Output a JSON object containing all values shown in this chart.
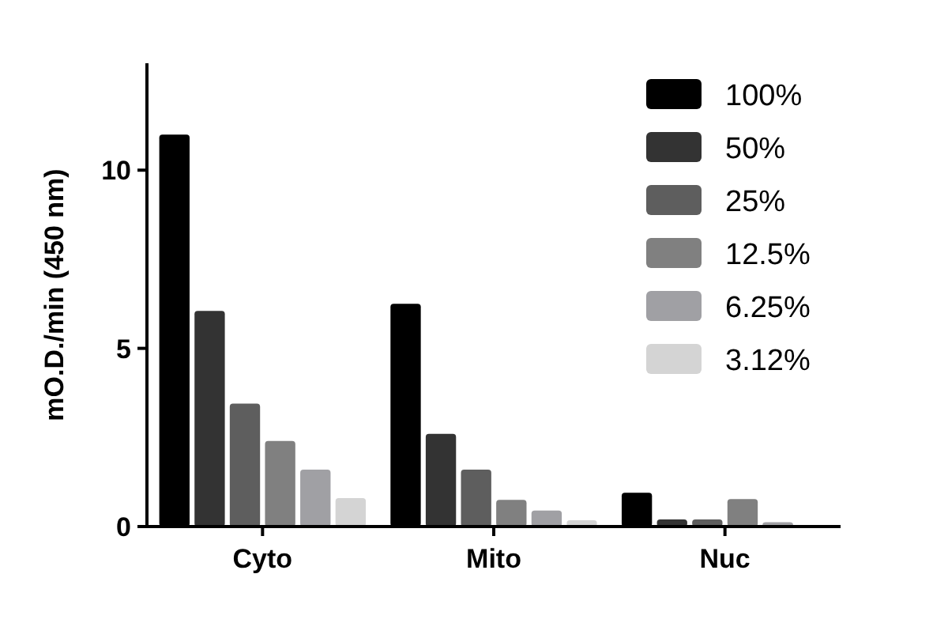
{
  "chart_data": {
    "type": "bar",
    "ylabel": "mO.D./min (450 nm)",
    "categories": [
      "Cyto",
      "Mito",
      "Nuc"
    ],
    "series": [
      {
        "name": "100%",
        "color": "#000000",
        "values": [
          11.0,
          6.25,
          0.95
        ]
      },
      {
        "name": "50%",
        "color": "#333333",
        "values": [
          6.05,
          2.6,
          0.2
        ]
      },
      {
        "name": "25%",
        "color": "#5e5e5e",
        "values": [
          3.45,
          1.6,
          0.2
        ]
      },
      {
        "name": "12.5%",
        "color": "#808080",
        "values": [
          2.4,
          0.75,
          0.77
        ]
      },
      {
        "name": "6.25%",
        "color": "#a0a0a4",
        "values": [
          1.6,
          0.45,
          0.12
        ]
      },
      {
        "name": "3.12%",
        "color": "#d4d4d4",
        "values": [
          0.8,
          0.18,
          null
        ]
      }
    ],
    "ylim": [
      0,
      13
    ],
    "yticks": [
      0,
      5,
      10
    ],
    "grid": false,
    "legend": "top right"
  }
}
